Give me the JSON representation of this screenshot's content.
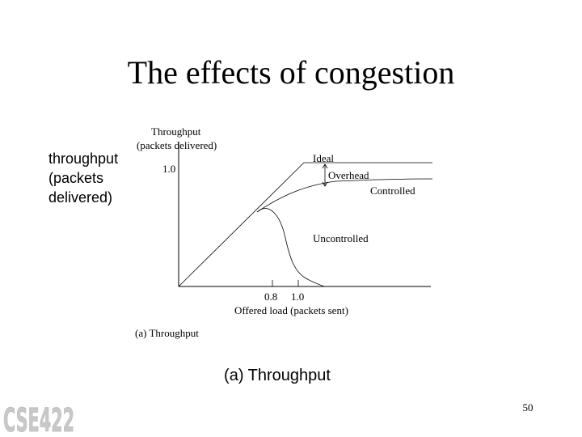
{
  "slide": {
    "title": "The effects of congestion",
    "side_label": [
      "throughput",
      "(packets",
      "delivered)"
    ],
    "caption": "(a) Throughput",
    "page_number": "50",
    "logo_text": "CSE422",
    "logo_color": "#c8c8c8"
  },
  "diagram": {
    "y_axis_label": [
      "Throughput",
      "(packets delivered)"
    ],
    "y_tick": "1.0",
    "x_ticks": [
      "0.8",
      "1.0"
    ],
    "x_axis_label": "Offered load (packets sent)",
    "curve_labels": {
      "ideal": "Ideal",
      "overhead": "Overhead",
      "controlled": "Controlled",
      "uncontrolled": "Uncontrolled"
    },
    "subcaption": "(a) Throughput"
  }
}
